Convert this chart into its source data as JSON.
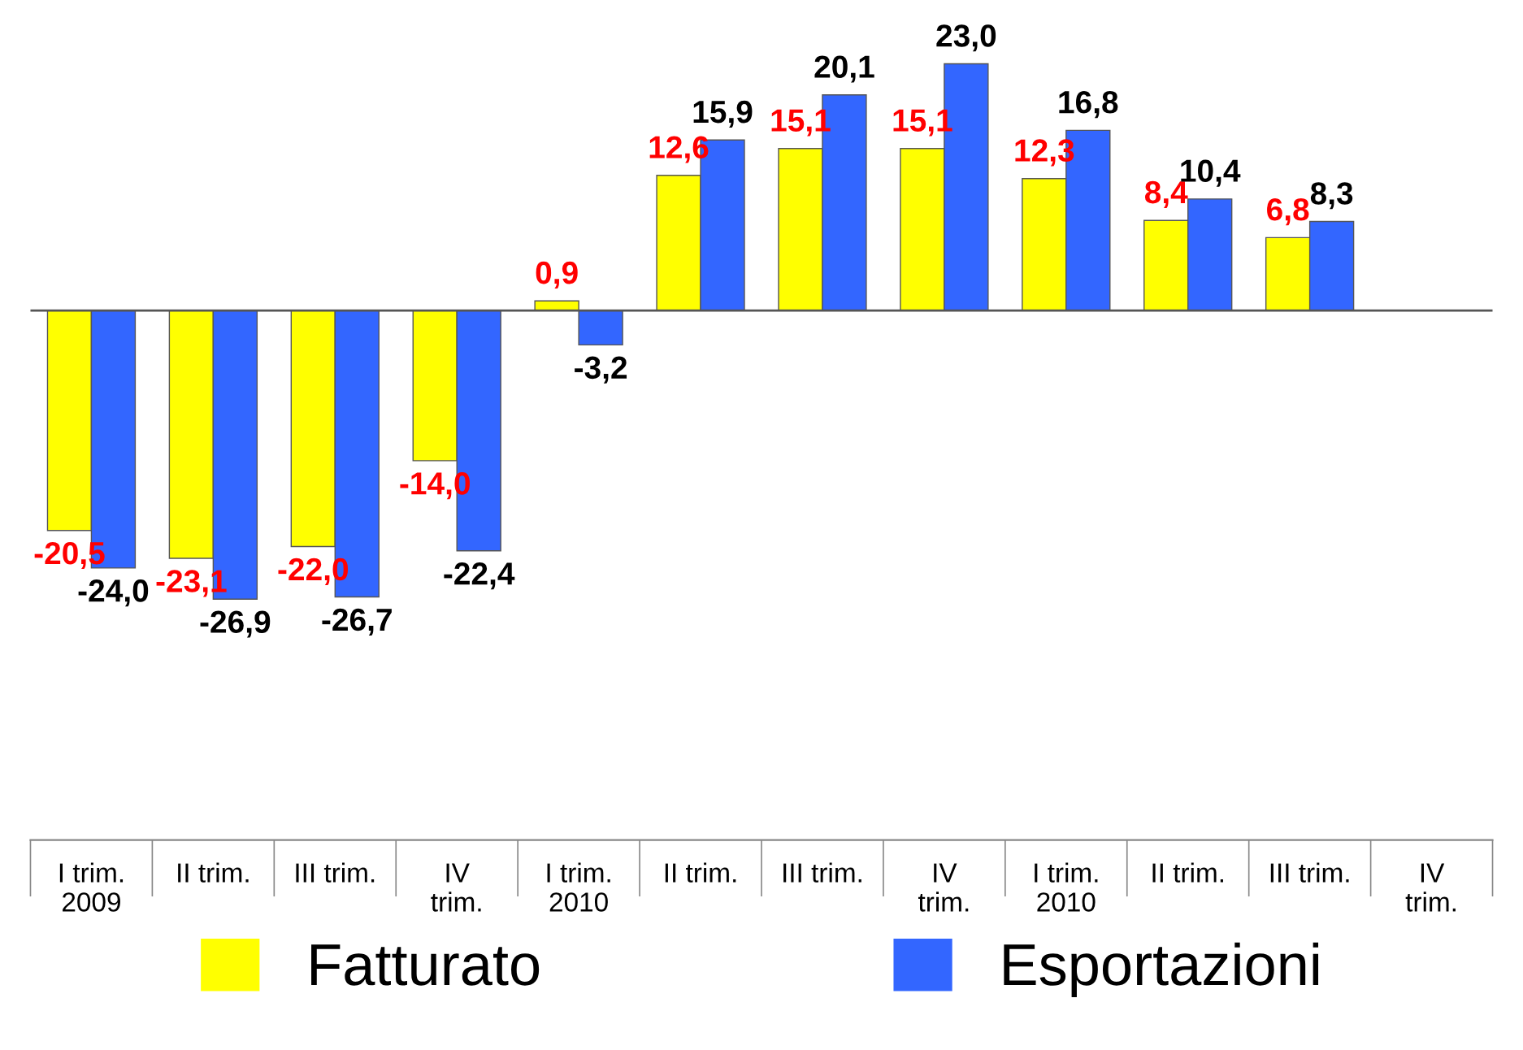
{
  "chart_data": {
    "type": "bar",
    "categories": [
      "I trim.\n2009",
      "II trim.",
      "III trim.",
      "IV\ntrim.",
      "I trim.\n2010",
      "II trim.",
      "III trim.",
      "IV\ntrim.",
      "I trim.\n2010",
      "II trim.",
      "III trim.",
      "IV\ntrim."
    ],
    "series": [
      {
        "name": "Fatturato",
        "color": "#ffff00",
        "values": [
          -20.5,
          -23.1,
          -22.0,
          -14.0,
          0.9,
          12.6,
          15.1,
          15.1,
          12.3,
          8.4,
          6.8,
          null
        ],
        "value_labels": [
          "-20,5",
          "-23,1",
          "-22,0",
          "-14,0",
          "0,9",
          "12,6",
          "15,1",
          "15,1",
          "12,3",
          "8,4",
          "6,8",
          null
        ]
      },
      {
        "name": "Esportazioni",
        "color": "#3366ff",
        "values": [
          -24.0,
          -26.9,
          -26.7,
          -22.4,
          -3.2,
          15.9,
          20.1,
          23.0,
          16.8,
          10.4,
          8.3,
          null
        ],
        "value_labels": [
          "-24,0",
          "-26,9",
          "-26,7",
          "-22,4",
          "-3,2",
          "15,9",
          "20,1",
          "23,0",
          "16,8",
          "10,4",
          "8,3",
          null
        ]
      }
    ],
    "legend": "bottom",
    "grid": false
  }
}
